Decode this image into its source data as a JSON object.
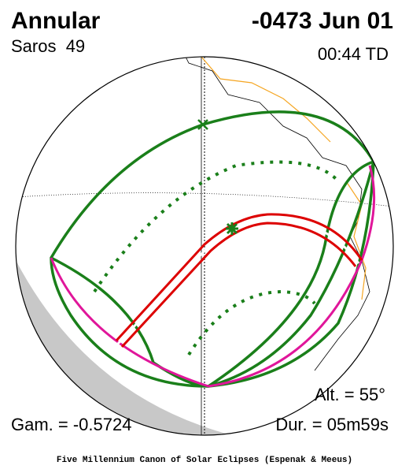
{
  "header": {
    "eclipse_type": "Annular",
    "date": "-0473 Jun 01",
    "saros": "Saros  49",
    "time": "00:44 TD"
  },
  "parameters": {
    "altitude": "Alt. = 55°",
    "gamma": "Gam. = -0.5724",
    "duration": "Dur. = 05m59s"
  },
  "footer": "Five Millennium Canon of Solar Eclipses (Espenak & Meeus)"
}
